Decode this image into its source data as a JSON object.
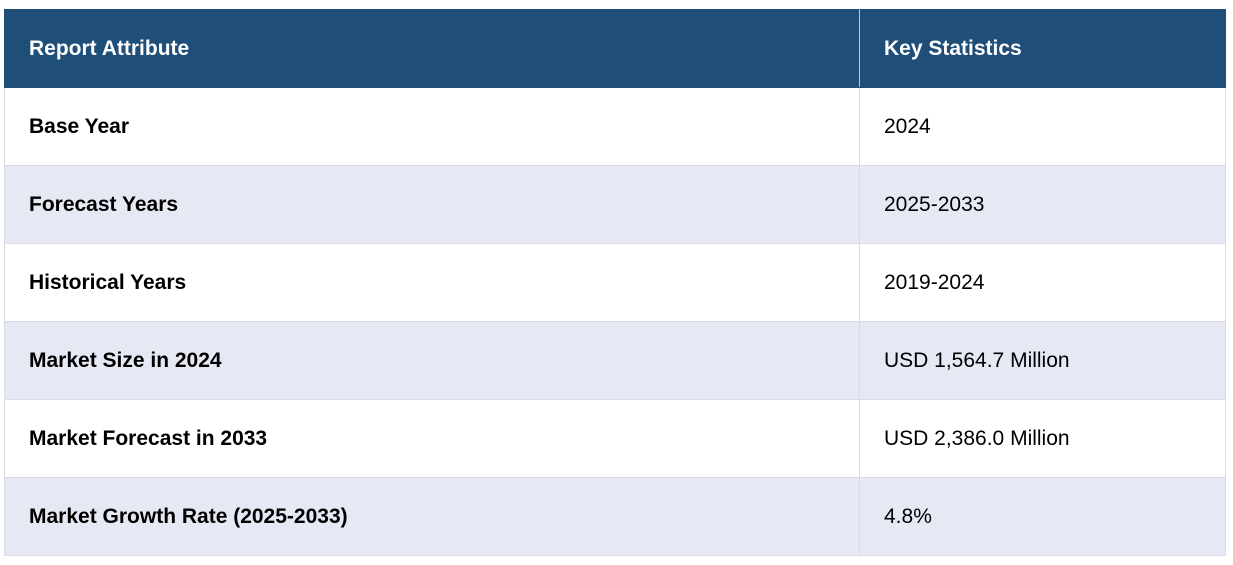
{
  "table": {
    "headers": [
      "Report Attribute",
      "Key Statistics"
    ],
    "rows": [
      [
        "Base Year",
        "2024"
      ],
      [
        "Forecast Years",
        "2025-2033"
      ],
      [
        "Historical Years",
        "2019-2024"
      ],
      [
        "Market Size in 2024",
        "USD 1,564.7 Million"
      ],
      [
        "Market Forecast in 2033",
        "USD 2,386.0 Million"
      ],
      [
        "Market Growth Rate (2025-2033)",
        "4.8%"
      ]
    ]
  },
  "colors": {
    "header_bg": "#1f4e79",
    "header_text": "#ffffff",
    "row_alt_bg": "#e6e9f4",
    "row_bg": "#ffffff"
  }
}
